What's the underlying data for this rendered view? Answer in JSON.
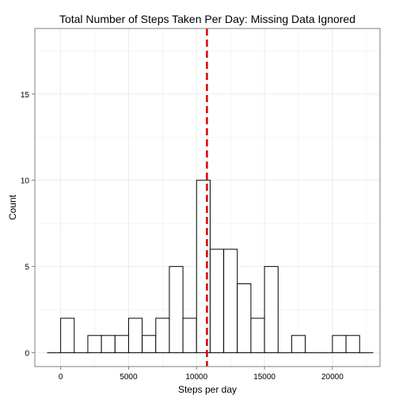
{
  "chart_data": {
    "type": "bar",
    "title": "Total Number of Steps Taken Per Day: Missing Data Ignored",
    "xlabel": "Steps per day",
    "ylabel": "Count",
    "xlim": [
      -1900,
      23500
    ],
    "ylim": [
      -0.8,
      18.8
    ],
    "x_ticks": [
      0,
      5000,
      10000,
      15000,
      20000
    ],
    "x_tick_labels": [
      "0",
      "5000",
      "10000",
      "15000",
      "20000"
    ],
    "y_ticks": [
      0,
      5,
      10,
      15
    ],
    "y_tick_labels": [
      "0",
      "5",
      "10",
      "15"
    ],
    "grid": true,
    "bin_width": 1000,
    "bins": [
      {
        "x0": -1000,
        "x1": 0,
        "count": 0
      },
      {
        "x0": 0,
        "x1": 1000,
        "count": 2
      },
      {
        "x0": 1000,
        "x1": 2000,
        "count": 0
      },
      {
        "x0": 2000,
        "x1": 3000,
        "count": 1
      },
      {
        "x0": 3000,
        "x1": 4000,
        "count": 1
      },
      {
        "x0": 4000,
        "x1": 5000,
        "count": 1
      },
      {
        "x0": 5000,
        "x1": 6000,
        "count": 2
      },
      {
        "x0": 6000,
        "x1": 7000,
        "count": 1
      },
      {
        "x0": 7000,
        "x1": 8000,
        "count": 2
      },
      {
        "x0": 8000,
        "x1": 9000,
        "count": 5
      },
      {
        "x0": 9000,
        "x1": 10000,
        "count": 2
      },
      {
        "x0": 10000,
        "x1": 11000,
        "count": 10
      },
      {
        "x0": 11000,
        "x1": 12000,
        "count": 6
      },
      {
        "x0": 12000,
        "x1": 13000,
        "count": 6
      },
      {
        "x0": 13000,
        "x1": 14000,
        "count": 4
      },
      {
        "x0": 14000,
        "x1": 15000,
        "count": 2
      },
      {
        "x0": 15000,
        "x1": 16000,
        "count": 5
      },
      {
        "x0": 16000,
        "x1": 17000,
        "count": 0
      },
      {
        "x0": 17000,
        "x1": 18000,
        "count": 1
      },
      {
        "x0": 18000,
        "x1": 19000,
        "count": 0
      },
      {
        "x0": 19000,
        "x1": 20000,
        "count": 0
      },
      {
        "x0": 20000,
        "x1": 21000,
        "count": 1
      },
      {
        "x0": 21000,
        "x1": 22000,
        "count": 1
      },
      {
        "x0": 22000,
        "x1": 23000,
        "count": 0
      }
    ],
    "mean_line": {
      "x": 10766,
      "color": "#dd0000",
      "style": "dashed"
    },
    "bar_fill": "#ffffff",
    "bar_stroke": "#000000",
    "panel_border": "#7f7f7f",
    "grid_color": "#ebebeb"
  }
}
